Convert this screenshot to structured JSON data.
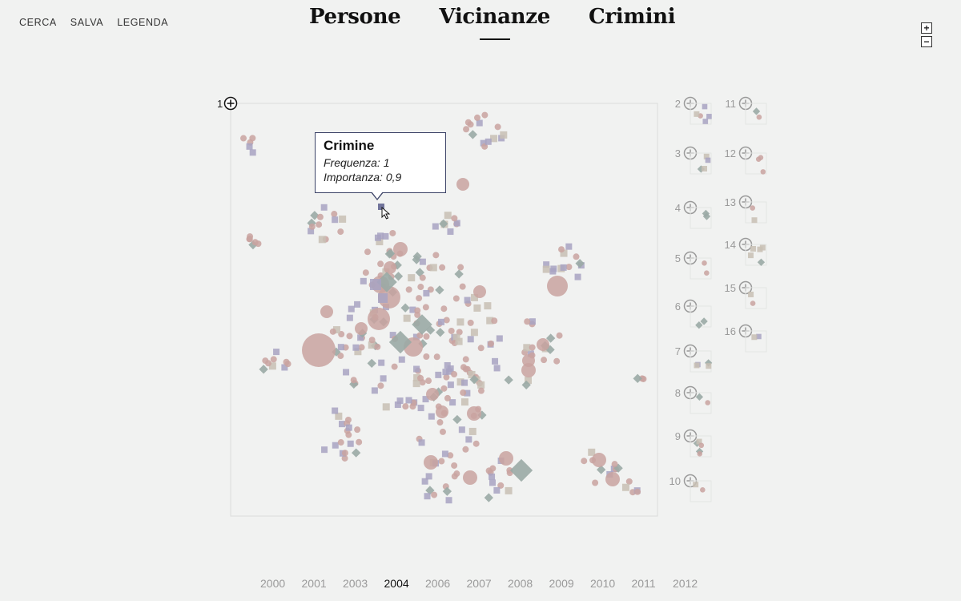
{
  "nav": {
    "search": "CERCA",
    "save": "SALVA",
    "legend": "LEGENDA"
  },
  "tabs": [
    {
      "label": "Persone",
      "active": false
    },
    {
      "label": "Vicinanze",
      "active": true
    },
    {
      "label": "Crimini",
      "active": false
    }
  ],
  "zoom": {
    "in_icon": "plus-icon",
    "out_icon": "minus-icon"
  },
  "main_panel": {
    "number": "1"
  },
  "thumbnails": [
    "2",
    "3",
    "4",
    "5",
    "6",
    "7",
    "8",
    "9",
    "10",
    "11",
    "12",
    "13",
    "14",
    "15",
    "16"
  ],
  "tooltip": {
    "title": "Crimine",
    "frequency": "Frequenza: 1",
    "importance": "Importanza: 0,9"
  },
  "years": [
    "2000",
    "2001",
    "2003",
    "2004",
    "2006",
    "2007",
    "2008",
    "2009",
    "2010",
    "2011",
    "2012"
  ],
  "active_year": "2004",
  "colors": {
    "background": "#f1f2f1",
    "person": "#c9a3a0",
    "crime": "#a8a3c2",
    "place": "#c8bfb4",
    "diamond": "#9aaaa5",
    "selected": "#5a5e8c",
    "text_dark": "#111111",
    "text_muted": "#9a9a9a"
  }
}
